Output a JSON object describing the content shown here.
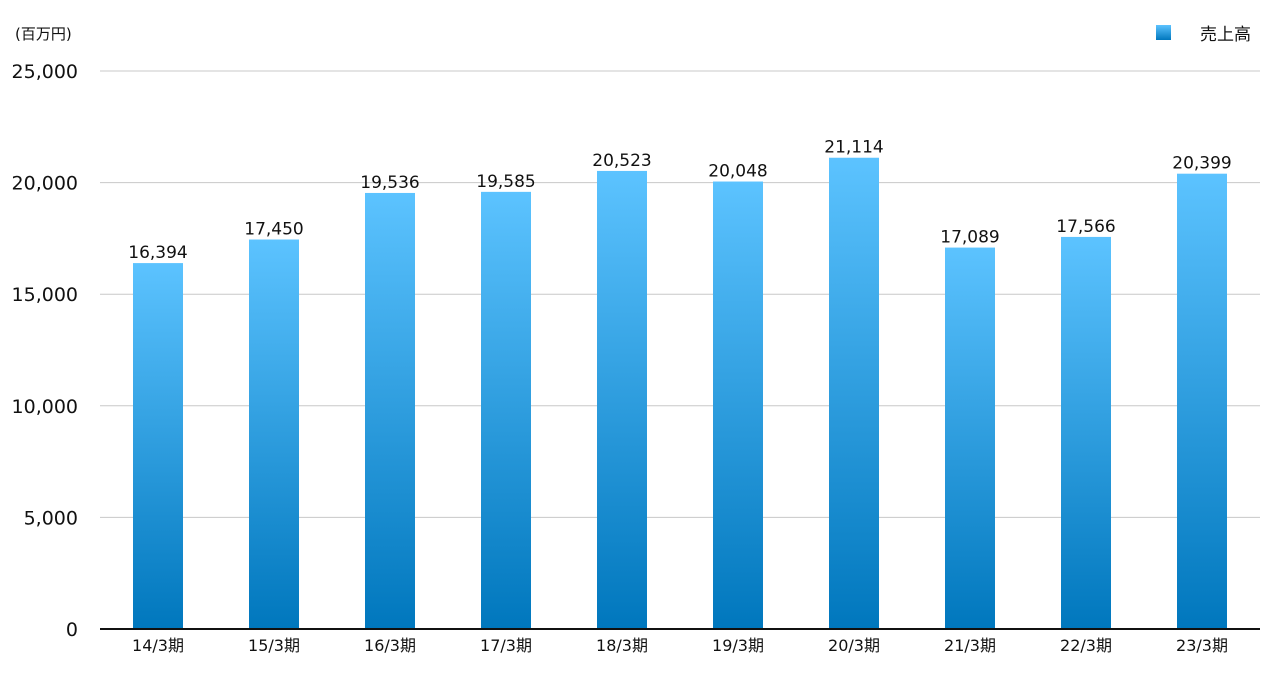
{
  "chart_data": {
    "type": "bar",
    "unit_label": "(百万円)",
    "categories": [
      "14/3期",
      "15/3期",
      "16/3期",
      "17/3期",
      "18/3期",
      "19/3期",
      "20/3期",
      "21/3期",
      "22/3期",
      "23/3期"
    ],
    "series": [
      {
        "name": "売上高",
        "values": [
          16394,
          17450,
          19536,
          19585,
          20523,
          20048,
          21114,
          17089,
          17566,
          20399
        ],
        "labels": [
          "16,394",
          "17,450",
          "19,536",
          "19,585",
          "20,523",
          "20,048",
          "21,114",
          "17,089",
          "17,566",
          "20,399"
        ]
      }
    ],
    "ylim": [
      0,
      25000
    ],
    "yticks": [
      0,
      5000,
      10000,
      15000,
      20000,
      25000
    ],
    "ytick_labels": [
      "0",
      "5,000",
      "10,000",
      "15,000",
      "20,000",
      "25,000"
    ],
    "grid": true,
    "legend_position": "top-right",
    "colors": {
      "bar_top": "#5cc3ff",
      "bar_bottom": "#0077bd"
    }
  }
}
